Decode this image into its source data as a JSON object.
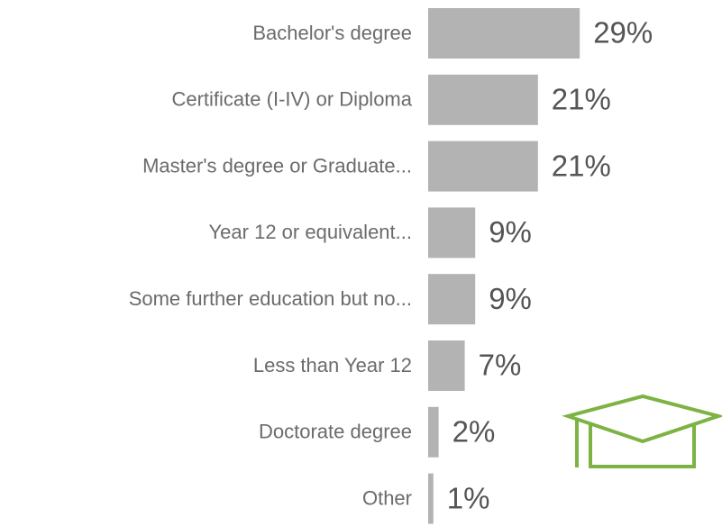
{
  "chart_data": {
    "type": "bar",
    "orientation": "horizontal",
    "categories": [
      "Bachelor's degree",
      "Certificate (I-IV) or Diploma",
      "Master's degree or Graduate...",
      "Year 12 or equivalent...",
      "Some further education but no...",
      "Less than Year 12",
      "Doctorate degree",
      "Other"
    ],
    "values": [
      29,
      21,
      21,
      9,
      9,
      7,
      2,
      1
    ],
    "value_labels": [
      "29%",
      "21%",
      "21%",
      "9%",
      "9%",
      "7%",
      "2%",
      "1%"
    ],
    "color": "#b3b3b3"
  }
}
